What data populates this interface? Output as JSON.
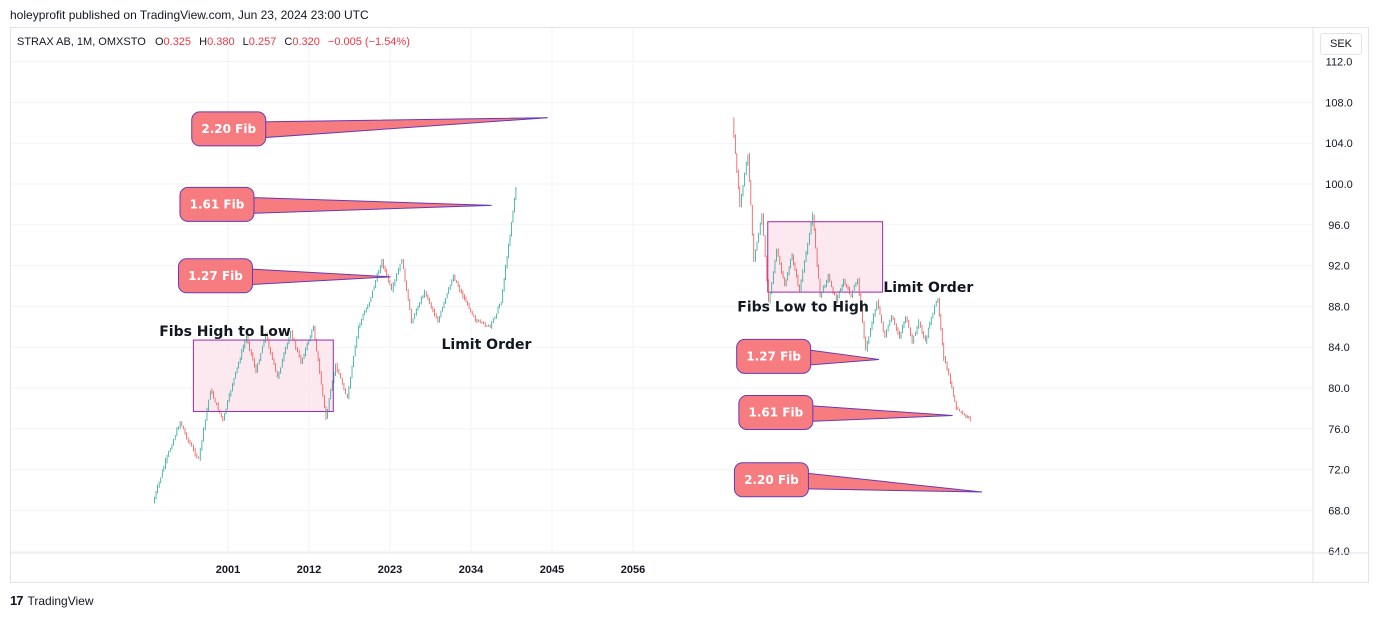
{
  "header": {
    "published_line": "holeyprofit published on TradingView.com, Jun 23, 2024 23:00 UTC"
  },
  "legend": {
    "symbol": "STRAX AB, 1M, OMXSTO",
    "open_label": "O",
    "open": "0.325",
    "high_label": "H",
    "high": "0.380",
    "low_label": "L",
    "low": "0.257",
    "close_label": "C",
    "close": "0.320",
    "change": "−0.005 (−1.54%)"
  },
  "currency": "SEK",
  "footer": {
    "brand_mark": "17",
    "brand_name": "TradingView"
  },
  "colors": {
    "up_candle": "#26a69a",
    "down_candle": "#ef5350",
    "callout_fill": "#f77c80",
    "callout_stroke": "#673ab7",
    "box_fill": "#fce4ec",
    "box_stroke": "#9c27b0",
    "grid": "#f0f3fa"
  },
  "chart_data": {
    "type": "line",
    "title": "",
    "xlabel": "",
    "ylabel": "",
    "x_ticks": [
      "2001",
      "2012",
      "2023",
      "2034",
      "2045",
      "2056"
    ],
    "y_ticks": [
      64.0,
      68.0,
      72.0,
      76.0,
      80.0,
      84.0,
      88.0,
      92.0,
      96.0,
      100.0,
      104.0,
      108.0,
      112.0
    ],
    "y_tick_labels": [
      "64.0",
      "68.0",
      "72.0",
      "76.0",
      "80.0",
      "84.0",
      "88.0",
      "92.0",
      "96.0",
      "100.0",
      "104.0",
      "108.0",
      "112.0"
    ],
    "ylim": [
      63.2,
      113.0
    ],
    "grid": true,
    "series": [
      {
        "x": [
          1990.8,
          1992.5,
          1994.5,
          1995.6,
          1997,
          1998.6,
          2000.3,
          2001.6,
          2003.5,
          2004.8,
          2006.1,
          2007.7,
          2009.5,
          2010.9,
          2012.6,
          2014.3,
          2015.6,
          2017.2,
          2018.7,
          2020.2,
          2021.9,
          2023.2,
          2024.6,
          2025.9,
          2027.7,
          2029.5,
          2031.6,
          2032.9,
          2034.8,
          2036.6,
          2038.1,
          2039.1,
          2040.1
        ],
        "y": [
          68.7,
          72.8,
          76.7,
          74.8,
          73.0,
          79.8,
          76.8,
          80.4,
          85.1,
          81.6,
          85.3,
          81.0,
          85.5,
          82.5,
          86.0,
          77.0,
          82.3,
          79.0,
          86.0,
          88.5,
          92.5,
          89.5,
          92.6,
          86.5,
          89.5,
          86.5,
          91.0,
          89.0,
          86.5,
          86.0,
          88.5,
          94.0,
          99.6
        ]
      },
      {
        "x": [
          2069.5,
          2070.5,
          2071.6,
          2072.4,
          2073.5,
          2074.4,
          2075.5,
          2076.6,
          2077.6,
          2078.6,
          2080.4,
          2081.4,
          2082.5,
          2083.6,
          2084.6,
          2085.6,
          2086.5,
          2087.6,
          2089.1,
          2090.2,
          2091.1,
          2092.2,
          2093.0,
          2093.9,
          2094.8,
          2095.7,
          2096.5,
          2097.4,
          2098.2,
          2099.1,
          2099.9,
          2101.0,
          2101.8
        ],
        "y": [
          106.5,
          97.8,
          103.0,
          92.5,
          97.0,
          88.5,
          93.5,
          90.0,
          93.0,
          89.5,
          97.0,
          89.0,
          91.0,
          88.5,
          90.5,
          89.0,
          90.7,
          83.7,
          88.5,
          85.0,
          87.0,
          85.0,
          87.0,
          84.5,
          86.5,
          84.5,
          87.0,
          88.7,
          83.0,
          80.5,
          78.0,
          77.3,
          77.0
        ]
      }
    ],
    "annotations": [
      {
        "kind": "text",
        "label": "Fibs High to Low",
        "x": 2000.6,
        "y": 85.6
      },
      {
        "kind": "text",
        "label": "Limit Order",
        "x": 2036.1,
        "y": 84.3
      },
      {
        "kind": "text",
        "label": "Fibs Low to High",
        "x": 2079.1,
        "y": 88.0
      },
      {
        "kind": "text",
        "label": "Limit Order",
        "x": 2096.1,
        "y": 89.9
      },
      {
        "kind": "box",
        "x0": 1996.3,
        "x1": 2015.3,
        "y0": 77.7,
        "y1": 84.7
      },
      {
        "kind": "box",
        "x0": 2074.3,
        "x1": 2089.9,
        "y0": 89.4,
        "y1": 96.3
      },
      {
        "kind": "callout",
        "label": "2.20 Fib",
        "x": 2001.1,
        "y": 105.4,
        "tip_x": 2044.4,
        "tip_y": 106.5
      },
      {
        "kind": "callout",
        "label": "1.61 Fib",
        "x": 1999.5,
        "y": 98.0,
        "tip_x": 2036.8,
        "tip_y": 97.9
      },
      {
        "kind": "callout",
        "label": "1.27 Fib",
        "x": 1999.3,
        "y": 91.0,
        "tip_x": 2023.1,
        "tip_y": 90.9
      },
      {
        "kind": "callout",
        "label": "1.27 Fib",
        "x": 2075.1,
        "y": 83.1,
        "tip_x": 2089.4,
        "tip_y": 82.8
      },
      {
        "kind": "callout",
        "label": "1.61 Fib",
        "x": 2075.4,
        "y": 77.6,
        "tip_x": 2099.4,
        "tip_y": 77.3
      },
      {
        "kind": "callout",
        "label": "2.20 Fib",
        "x": 2074.8,
        "y": 71.0,
        "tip_x": 2103.4,
        "tip_y": 69.8
      }
    ]
  }
}
